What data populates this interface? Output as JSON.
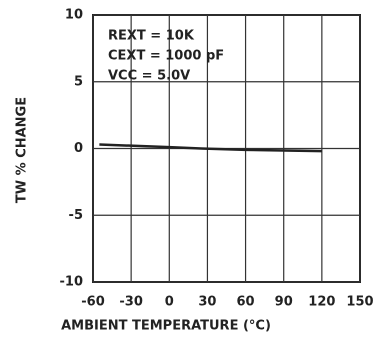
{
  "chart_data": {
    "type": "line",
    "xlabel": "AMBIENT TEMPERATURE (°C)",
    "ylabel": "TW % CHANGE",
    "annotations": [
      "REXT = 10K",
      "CEXT = 1000 pF",
      "VCC = 5.0V"
    ],
    "x": [
      -55,
      0,
      25,
      60,
      90,
      120
    ],
    "series": [
      {
        "color": "#222222",
        "values": [
          0.3,
          0.1,
          0,
          -0.1,
          -0.15,
          -0.2
        ]
      }
    ],
    "xlim": [
      -60,
      150
    ],
    "xticks": [
      -60,
      -30,
      0,
      30,
      60,
      90,
      120,
      150
    ],
    "ylim": [
      -10,
      10
    ],
    "yticks": [
      -10,
      -5,
      0,
      5,
      10
    ],
    "grid": true
  }
}
